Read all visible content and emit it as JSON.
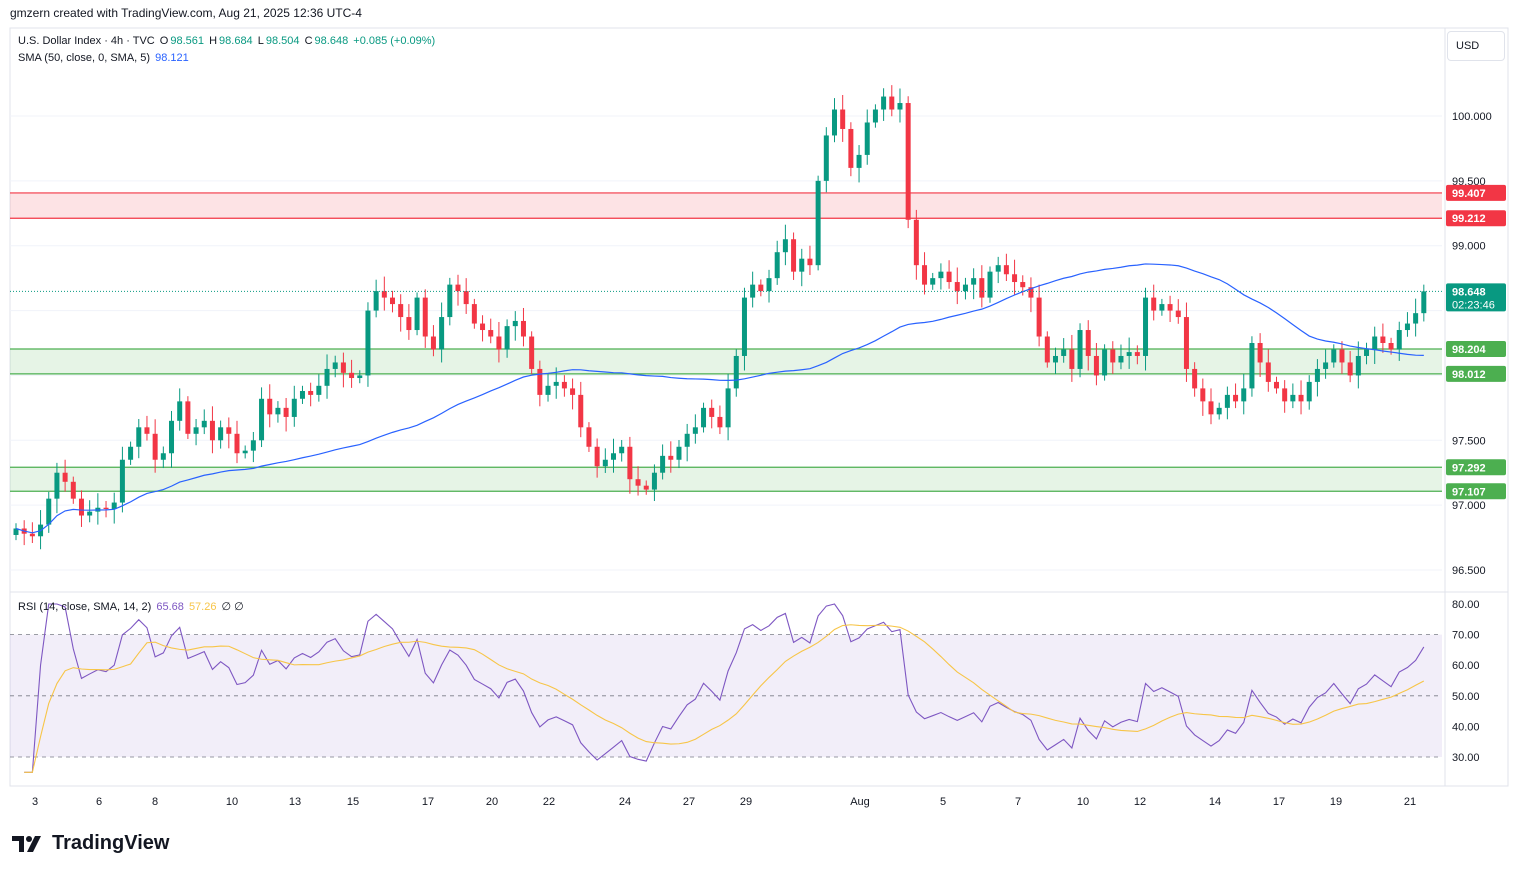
{
  "header": {
    "text": "gmzern created with TradingView.com, Aug 21, 2025 12:36 UTC-4"
  },
  "legend": {
    "symbol": "U.S. Dollar Index · 4h · TVC",
    "open_label": "O",
    "open": "98.561",
    "high_label": "H",
    "high": "98.684",
    "low_label": "L",
    "low": "98.504",
    "close_label": "C",
    "close": "98.648",
    "change": "+0.085 (+0.09%)",
    "sma_label": "SMA (50, close, 0, SMA, 5)",
    "sma_value": "98.121",
    "rsi_label": "RSI (14, close, SMA, 14, 2)",
    "rsi_value": "65.68",
    "rsi_sma_value": "57.26",
    "rsi_extra": "∅  ∅"
  },
  "currency": "USD",
  "footer": {
    "brand": "TradingView"
  },
  "colors": {
    "up": "#089981",
    "down": "#f23645",
    "sma": "#2962ff",
    "rsi": "#7e57c2",
    "rsi_sma": "#f7c548",
    "support_zone": "#4caf50",
    "resistance_zone": "#f23645"
  },
  "chart_data": {
    "type": "candlestick",
    "price_axis": {
      "ticks": [
        "100.000",
        "99.500",
        "99.000",
        "97.500",
        "97.000",
        "96.500"
      ],
      "ylim": [
        96.4,
        100.4
      ]
    },
    "time_axis": {
      "ticks": [
        "3",
        "6",
        "8",
        "10",
        "13",
        "15",
        "17",
        "20",
        "22",
        "24",
        "27",
        "29",
        "Aug",
        "5",
        "7",
        "10",
        "12",
        "14",
        "17",
        "19",
        "21"
      ]
    },
    "price_labels": [
      {
        "value": "99.407",
        "kind": "resistance"
      },
      {
        "value": "99.212",
        "kind": "resistance"
      },
      {
        "value": "98.648",
        "kind": "last",
        "countdown": "02:23:46"
      },
      {
        "value": "98.204",
        "kind": "support"
      },
      {
        "value": "98.012",
        "kind": "support"
      },
      {
        "value": "97.292",
        "kind": "support"
      },
      {
        "value": "97.107",
        "kind": "support"
      }
    ],
    "zones": [
      {
        "name": "resistance",
        "from": 99.212,
        "to": 99.407
      },
      {
        "name": "support-upper",
        "from": 98.012,
        "to": 98.204
      },
      {
        "name": "support-lower",
        "from": 97.107,
        "to": 97.292
      }
    ],
    "closes": [
      96.82,
      96.78,
      96.76,
      96.85,
      97.05,
      97.25,
      97.18,
      97.05,
      96.92,
      96.95,
      96.98,
      96.97,
      97.02,
      97.35,
      97.45,
      97.6,
      97.55,
      97.35,
      97.4,
      97.65,
      97.8,
      97.55,
      97.6,
      97.65,
      97.5,
      97.6,
      97.55,
      97.4,
      97.42,
      97.5,
      97.82,
      97.7,
      97.75,
      97.68,
      97.82,
      97.88,
      97.85,
      97.92,
      98.05,
      98.1,
      98.02,
      97.98,
      98.0,
      98.5,
      98.65,
      98.6,
      98.55,
      98.45,
      98.35,
      98.6,
      98.3,
      98.2,
      98.45,
      98.7,
      98.65,
      98.55,
      98.4,
      98.35,
      98.3,
      98.2,
      98.38,
      98.42,
      98.3,
      98.05,
      97.85,
      97.92,
      97.95,
      97.9,
      97.85,
      97.6,
      97.45,
      97.3,
      97.35,
      97.4,
      97.45,
      97.2,
      97.15,
      97.12,
      97.25,
      97.38,
      97.35,
      97.45,
      97.55,
      97.6,
      97.75,
      97.68,
      97.6,
      97.9,
      98.15,
      98.6,
      98.7,
      98.65,
      98.75,
      98.95,
      99.05,
      98.8,
      98.9,
      98.85,
      99.5,
      99.85,
      100.05,
      99.9,
      99.6,
      99.7,
      99.95,
      100.05,
      100.15,
      100.05,
      100.1,
      99.2,
      98.85,
      98.7,
      98.75,
      98.8,
      98.72,
      98.65,
      98.7,
      98.75,
      98.6,
      98.8,
      98.85,
      98.78,
      98.72,
      98.68,
      98.6,
      98.3,
      98.1,
      98.15,
      98.2,
      98.05,
      98.35,
      98.15,
      98.0,
      98.2,
      98.1,
      98.15,
      98.18,
      98.15,
      98.6,
      98.5,
      98.55,
      98.5,
      98.45,
      98.05,
      97.9,
      97.8,
      97.7,
      97.75,
      97.85,
      97.8,
      97.9,
      98.25,
      98.1,
      97.95,
      97.9,
      97.8,
      97.85,
      97.8,
      97.95,
      98.05,
      98.1,
      98.2,
      98.1,
      98.0,
      98.15,
      98.2,
      98.3,
      98.25,
      98.2,
      98.35,
      98.4,
      98.48,
      98.648
    ]
  }
}
